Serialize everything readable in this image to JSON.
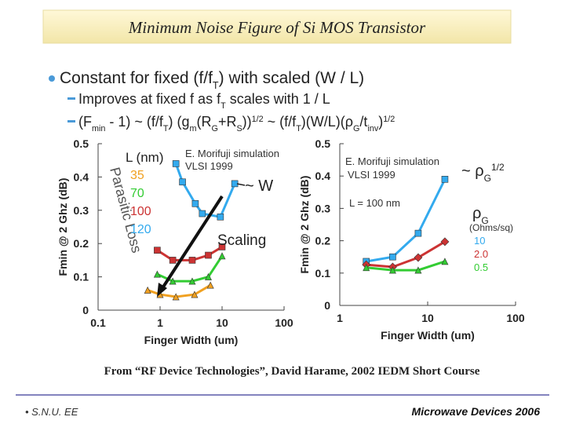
{
  "title": "Minimum Noise Figure of Si MOS Transistor",
  "bullets": [
    [
      "Constant for fixed (f/f",
      {
        "sub": "T"
      },
      ") with scaled (W / L)"
    ],
    [
      "Improves at fixed f  as f",
      {
        "sub": "T"
      },
      " scales with 1 / L"
    ],
    [
      "(F",
      {
        "sub": "min"
      },
      " - 1) ~ (f/f",
      {
        "sub": "T"
      },
      ") (g",
      {
        "sub": "m"
      },
      "(R",
      {
        "sub": "G"
      },
      "+R",
      {
        "sub": "S"
      },
      "))",
      {
        "sup": "1/2"
      },
      " ~ (f/f",
      {
        "sub": "T"
      },
      ")(W/L)(ρ",
      {
        "sub": "G"
      },
      "/t",
      {
        "sub": "inv"
      },
      ")",
      {
        "sup": "1/2"
      }
    ]
  ],
  "source": "From “RF Device Technologies”, David Harame, 2002 IEDM Short Course",
  "footer_left": "• S.N.U. EE",
  "footer_right": "Microwave Devices 2006",
  "chart_data": [
    {
      "type": "line",
      "x_label": "Finger Width (um)",
      "y_label": "Fmin @ 2 Ghz (dB)",
      "xscale": "log",
      "xlim": [
        0.1,
        100
      ],
      "xticks": [
        0.1,
        1,
        10,
        100
      ],
      "ylim": [
        0,
        0.5
      ],
      "yticks": [
        0,
        0.1,
        0.2,
        0.3,
        0.4,
        0.5
      ],
      "legend_title": "L (nm)",
      "annotations": [
        "E. Morifuji simulation",
        "VLSI 1999",
        "~ W",
        "Parasitic Loss",
        "Scaling"
      ],
      "series": [
        {
          "name": "35",
          "color": "#f0a020",
          "marker": "triangle",
          "x": [
            0.63,
            1.0,
            1.8,
            3.6,
            6.5
          ],
          "values": [
            0.06,
            0.047,
            0.04,
            0.047,
            0.075
          ]
        },
        {
          "name": "70",
          "color": "#33cc33",
          "marker": "triangle",
          "x": [
            0.9,
            1.6,
            3.3,
            6,
            10
          ],
          "values": [
            0.108,
            0.087,
            0.087,
            0.1,
            0.163
          ]
        },
        {
          "name": "100",
          "color": "#cc3333",
          "marker": "square",
          "x": [
            0.9,
            1.6,
            3.3,
            6,
            10
          ],
          "values": [
            0.18,
            0.15,
            0.15,
            0.165,
            0.19
          ]
        },
        {
          "name": "120",
          "color": "#33aaee",
          "marker": "square",
          "x": [
            1.8,
            2.3,
            3.7,
            4.8,
            9.4,
            16
          ],
          "values": [
            0.44,
            0.385,
            0.32,
            0.29,
            0.28,
            0.38
          ]
        }
      ]
    },
    {
      "type": "line",
      "x_label": "Finger Width (um)",
      "y_label": "Fmin @ 2 Ghz (dB)",
      "xscale": "log",
      "xlim": [
        1,
        100
      ],
      "xticks": [
        1,
        10,
        100
      ],
      "ylim": [
        0,
        0.5
      ],
      "yticks": [
        0,
        0.1,
        0.2,
        0.3,
        0.4,
        0.5
      ],
      "legend_title": [
        "ρ",
        {
          "sub": "G"
        }
      ],
      "legend_subtitle": "(Ohms/sq)",
      "annotations": [
        "E. Morifuji simulation",
        "VLSI 1999",
        "L = 100 nm",
        [
          "~ ρ",
          {
            "sub": "G"
          },
          {
            "sup": "1/2"
          }
        ]
      ],
      "series": [
        {
          "name": "10",
          "color": "#33aaee",
          "marker": "square",
          "x": [
            2,
            4,
            7.8,
            15.7
          ],
          "values": [
            0.136,
            0.15,
            0.223,
            0.39
          ]
        },
        {
          "name": "2.0",
          "color": "#cc3333",
          "marker": "diamond",
          "x": [
            2,
            4,
            7.8,
            15.7
          ],
          "values": [
            0.126,
            0.119,
            0.148,
            0.197
          ]
        },
        {
          "name": "0.5",
          "color": "#33cc33",
          "marker": "triangle",
          "x": [
            2,
            4,
            7.8,
            15.7
          ],
          "values": [
            0.117,
            0.109,
            0.109,
            0.136
          ]
        }
      ]
    }
  ]
}
